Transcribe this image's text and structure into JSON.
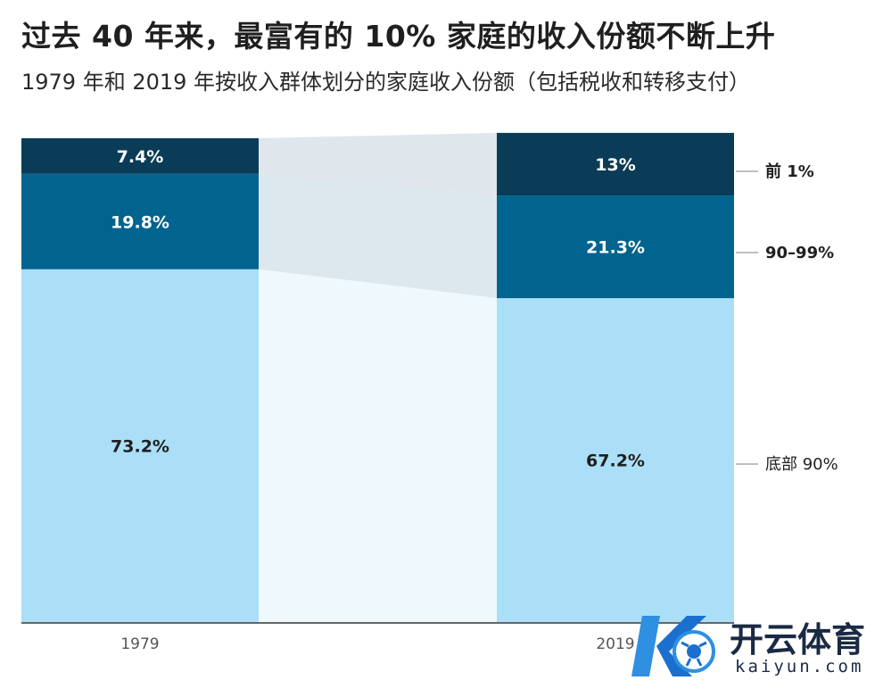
{
  "chart_data": {
    "type": "bar",
    "stacked": true,
    "title": "过去 40 年来，最富有的 10% 家庭的收入份额不断上升",
    "subtitle": "1979 年和 2019 年按收入群体划分的家庭收入份额（包括税收和转移支付）",
    "categories": [
      "1979",
      "2019"
    ],
    "series": [
      {
        "name": "底部 90%",
        "values": [
          73.2,
          67.2
        ],
        "labels": [
          "73.2%",
          "67.2%"
        ],
        "color": "#abdff7",
        "text_color": "#1f1f1f"
      },
      {
        "name": "90–99%",
        "values": [
          19.8,
          21.3
        ],
        "labels": [
          "19.8%",
          "21.3%"
        ],
        "color": "#01648f",
        "text_color": "#ffffff"
      },
      {
        "name": "前 1%",
        "values": [
          7.4,
          13
        ],
        "labels": [
          "7.4%",
          "13%"
        ],
        "color": "#0a3b57",
        "text_color": "#ffffff"
      }
    ],
    "ylim": [
      0,
      100
    ],
    "grid": false,
    "legend": "right"
  },
  "watermark": {
    "brand": "开云体育",
    "url": "kaiyun.com",
    "colors": {
      "primary": "#1a2a44",
      "accent": "#2f8fe0"
    }
  }
}
